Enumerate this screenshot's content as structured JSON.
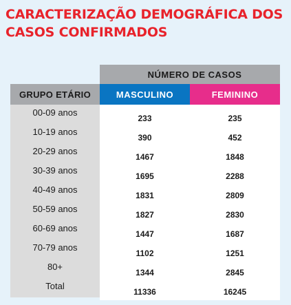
{
  "title": {
    "line1": "CARACTERIZAÇÃO DEMOGRÁFICA DOS",
    "line2": "CASOS CONFIRMADOS"
  },
  "table": {
    "header_top": "NÚMERO DE CASOS",
    "header_group": "GRUPO ETÁRIO",
    "header_male": "MASCULINO",
    "header_female": "FEMININO",
    "rows": [
      {
        "group": "00-09 anos",
        "male": "233",
        "female": "235"
      },
      {
        "group": "10-19 anos",
        "male": "390",
        "female": "452"
      },
      {
        "group": "20-29 anos",
        "male": "1467",
        "female": "1848"
      },
      {
        "group": "30-39 anos",
        "male": "1695",
        "female": "2288"
      },
      {
        "group": "40-49 anos",
        "male": "1831",
        "female": "2809"
      },
      {
        "group": "50-59 anos",
        "male": "1827",
        "female": "2830"
      },
      {
        "group": "60-69 anos",
        "male": "1447",
        "female": "1687"
      },
      {
        "group": "70-79 anos",
        "male": "1102",
        "female": "1251"
      },
      {
        "group": "80+",
        "male": "1344",
        "female": "2845"
      },
      {
        "group": "Total",
        "male": "11336",
        "female": "16245"
      }
    ]
  },
  "colors": {
    "title": "#e8232b",
    "header_gray": "#a7a9ac",
    "male": "#0a75c2",
    "female": "#e72d8b",
    "background": "#e6f2fa"
  }
}
